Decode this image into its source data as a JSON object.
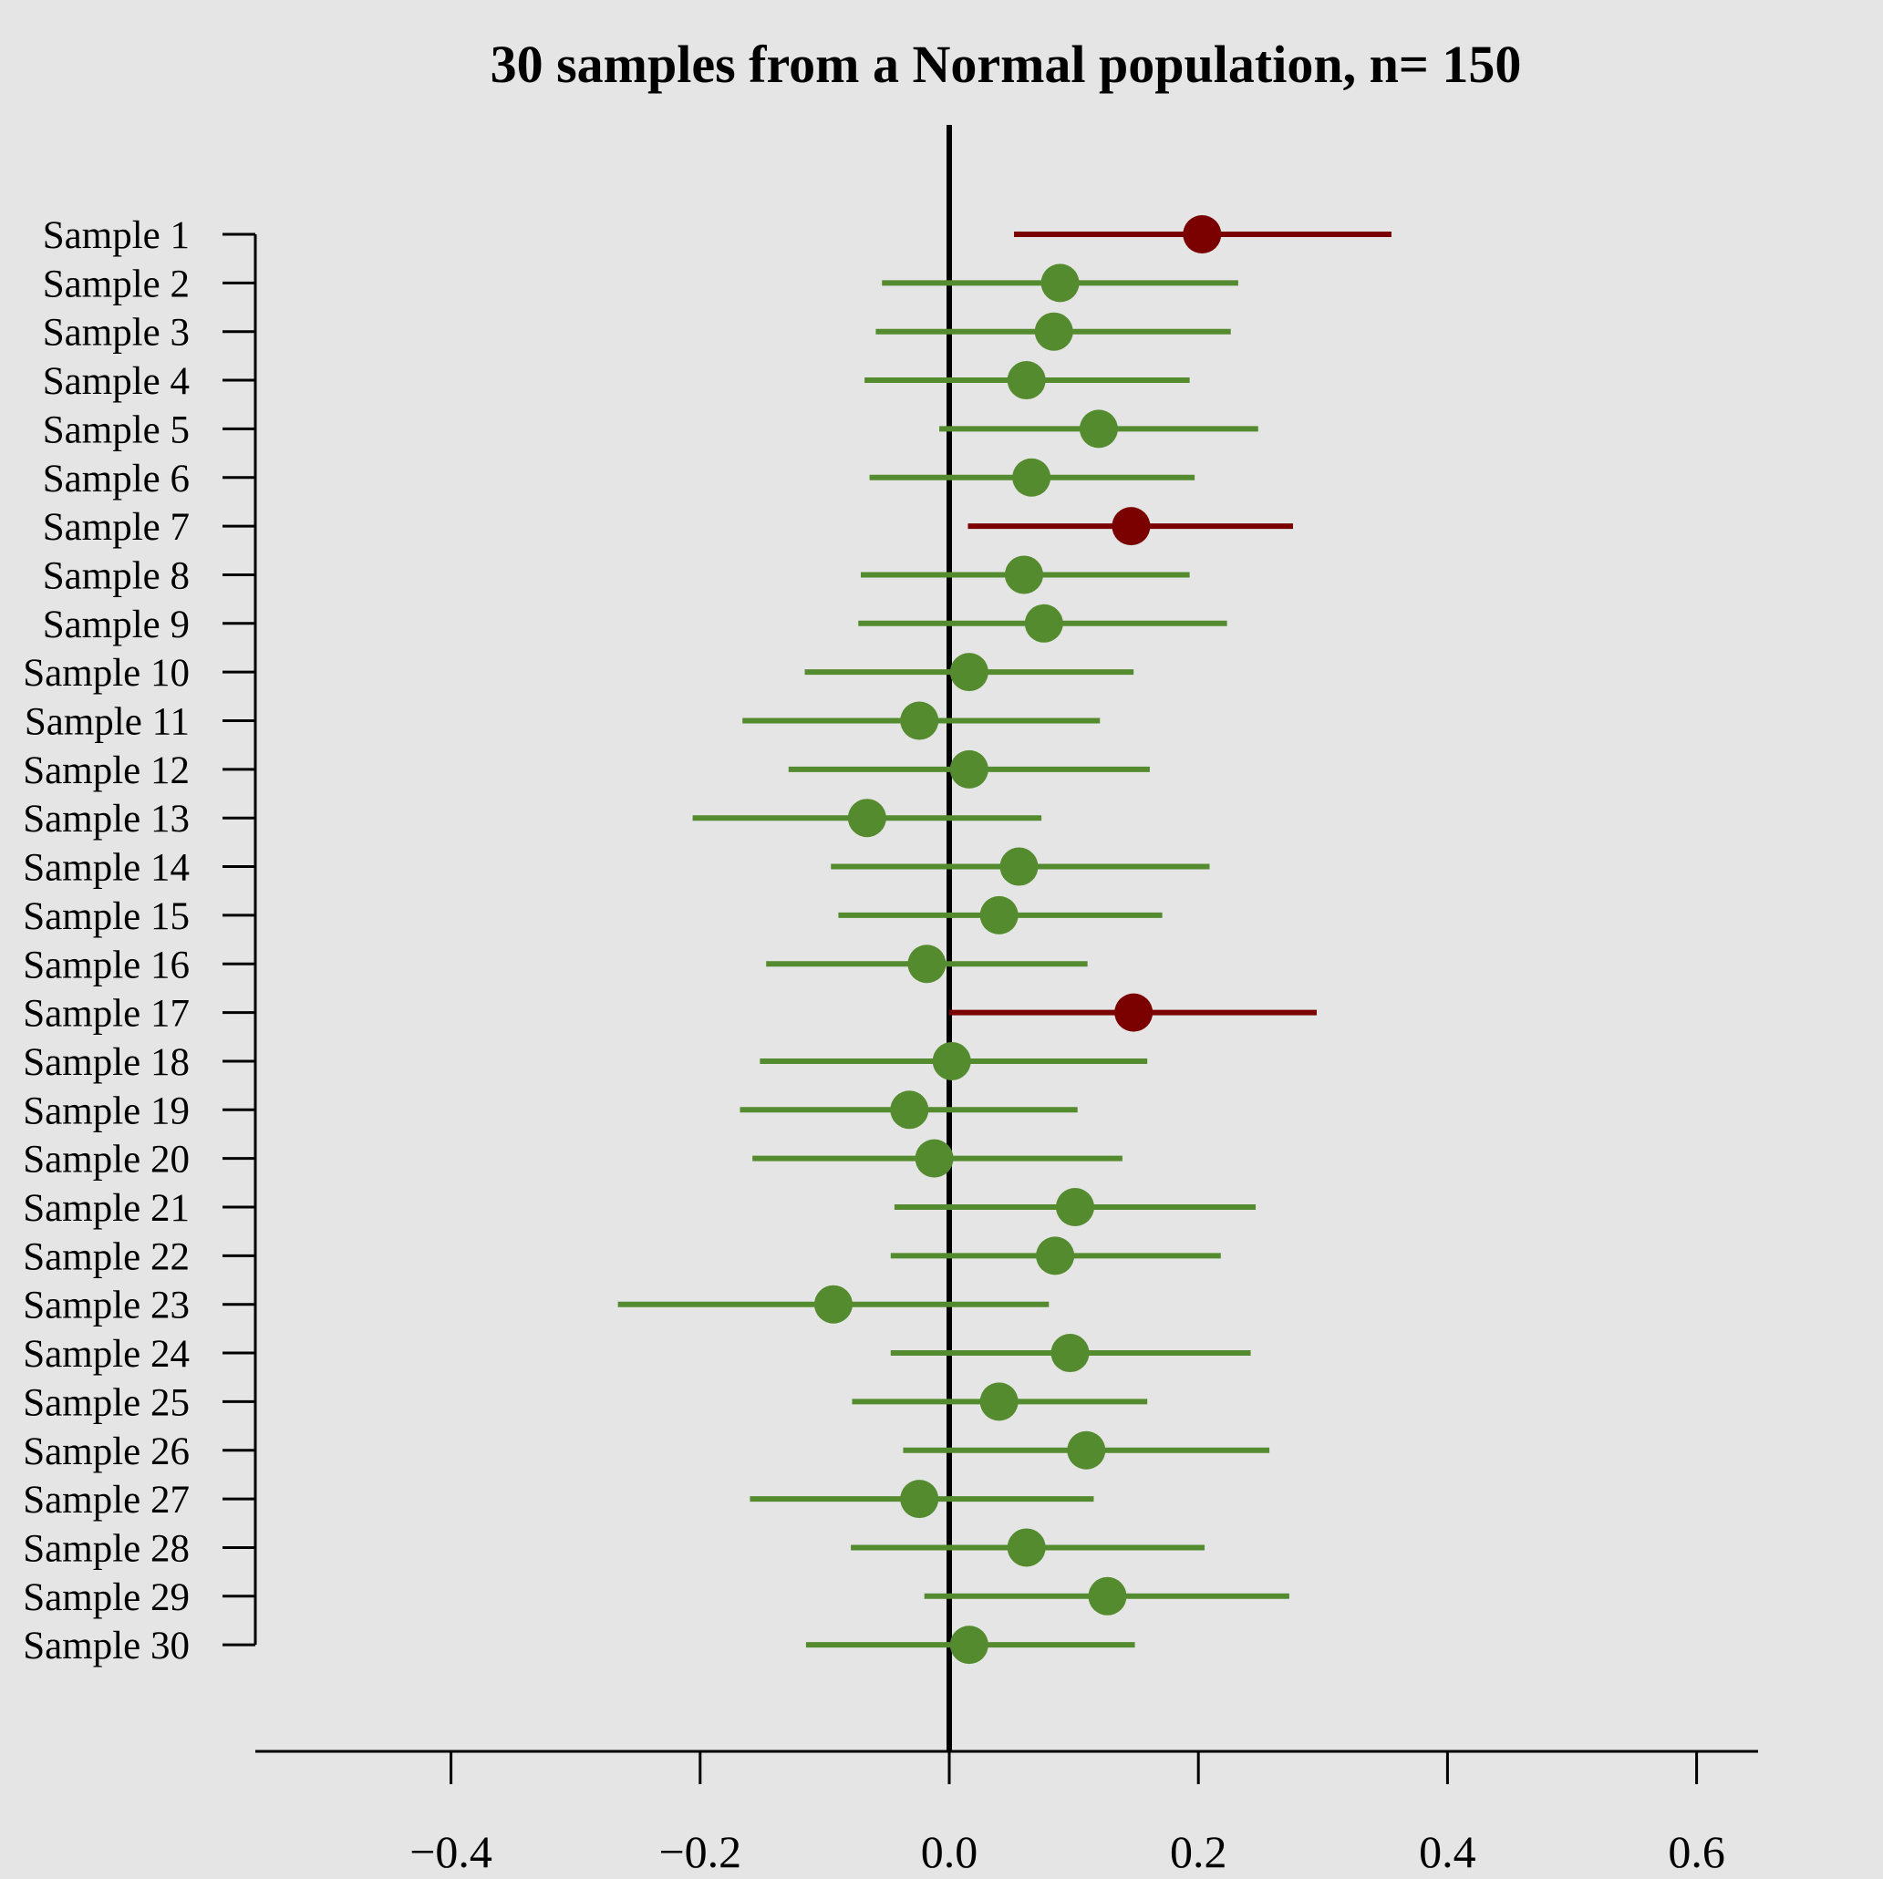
{
  "chart_data": {
    "type": "scatter",
    "title": "30 samples from a Normal population, n= 150",
    "xlabel": "",
    "ylabel": "",
    "xlim": [
      -0.56,
      0.65
    ],
    "xticks": [
      -0.4,
      -0.2,
      0.0,
      0.2,
      0.4,
      0.6
    ],
    "xtick_labels": [
      "−0.4",
      "−0.2",
      "0.0",
      "0.2",
      "0.4",
      "0.6"
    ],
    "reference_line": 0.0,
    "grid": false,
    "legend": "none",
    "colors": {
      "covers": "#558b2f",
      "misses": "#7b0000",
      "background": "#e5e5e5"
    },
    "categories": [
      "Sample 1",
      "Sample 2",
      "Sample 3",
      "Sample 4",
      "Sample 5",
      "Sample 6",
      "Sample 7",
      "Sample 8",
      "Sample 9",
      "Sample 10",
      "Sample 11",
      "Sample 12",
      "Sample 13",
      "Sample 14",
      "Sample 15",
      "Sample 16",
      "Sample 17",
      "Sample 18",
      "Sample 19",
      "Sample 20",
      "Sample 21",
      "Sample 22",
      "Sample 23",
      "Sample 24",
      "Sample 25",
      "Sample 26",
      "Sample 27",
      "Sample 28",
      "Sample 29",
      "Sample 30"
    ],
    "means": [
      0.203,
      0.089,
      0.084,
      0.062,
      0.12,
      0.066,
      0.146,
      0.06,
      0.076,
      0.016,
      -0.024,
      0.016,
      -0.066,
      0.056,
      0.04,
      -0.018,
      0.148,
      0.002,
      -0.032,
      -0.012,
      0.101,
      0.085,
      -0.093,
      0.097,
      0.04,
      0.11,
      -0.024,
      0.062,
      0.127,
      0.016
    ],
    "lower": [
      0.052,
      -0.054,
      -0.059,
      -0.068,
      -0.008,
      -0.064,
      0.015,
      -0.071,
      -0.073,
      -0.116,
      -0.166,
      -0.129,
      -0.206,
      -0.095,
      -0.089,
      -0.147,
      0.0,
      -0.152,
      -0.168,
      -0.158,
      -0.044,
      -0.047,
      -0.266,
      -0.047,
      -0.078,
      -0.037,
      -0.16,
      -0.079,
      -0.02,
      -0.115
    ],
    "upper": [
      0.355,
      0.232,
      0.226,
      0.193,
      0.248,
      0.197,
      0.276,
      0.193,
      0.223,
      0.148,
      0.121,
      0.161,
      0.074,
      0.209,
      0.171,
      0.111,
      0.295,
      0.159,
      0.103,
      0.139,
      0.246,
      0.218,
      0.08,
      0.242,
      0.159,
      0.257,
      0.116,
      0.205,
      0.273,
      0.149
    ],
    "covers_true_mean": [
      false,
      true,
      true,
      true,
      true,
      true,
      false,
      true,
      true,
      true,
      true,
      true,
      true,
      true,
      true,
      true,
      false,
      true,
      true,
      true,
      true,
      true,
      true,
      true,
      true,
      true,
      true,
      true,
      true,
      true
    ]
  }
}
